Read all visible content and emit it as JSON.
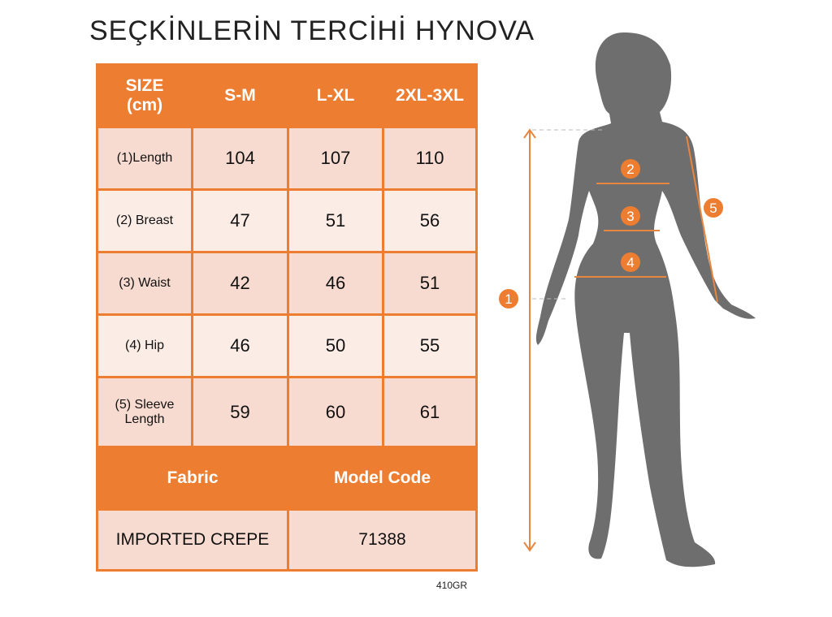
{
  "table": {
    "header": {
      "size_label": "SIZE\n(cm)",
      "size_line1": "SIZE",
      "size_line2": "(cm)",
      "columns": [
        "S-M",
        "L-XL",
        "2XL-3XL"
      ]
    },
    "rows": [
      {
        "label": "(1)Length",
        "values": [
          "104",
          "107",
          "110"
        ]
      },
      {
        "label": "(2) Breast",
        "values": [
          "47",
          "51",
          "56"
        ]
      },
      {
        "label": "(3) Waist",
        "values": [
          "42",
          "46",
          "51"
        ]
      },
      {
        "label": "(4) Hip",
        "values": [
          "46",
          "50",
          "55"
        ]
      },
      {
        "label_line1": "(5) Sleeve",
        "label_line2": "Length",
        "values": [
          "59",
          "60",
          "61"
        ]
      }
    ],
    "fabric_header": "Fabric",
    "model_code_header": "Model Code",
    "fabric_value": "IMPORTED CREPE",
    "model_code_value": "71388"
  },
  "product_code": "410GR",
  "watermark": "SEÇKİNLERİN TERCİHİ HYNOVA",
  "diagram": {
    "markers": [
      "1",
      "2",
      "3",
      "4",
      "5"
    ]
  },
  "colors": {
    "accent": "#ED7D31",
    "cell": "#F8DBD0",
    "cell_light": "#FBECE6",
    "silhouette": "#6E6E6E"
  }
}
